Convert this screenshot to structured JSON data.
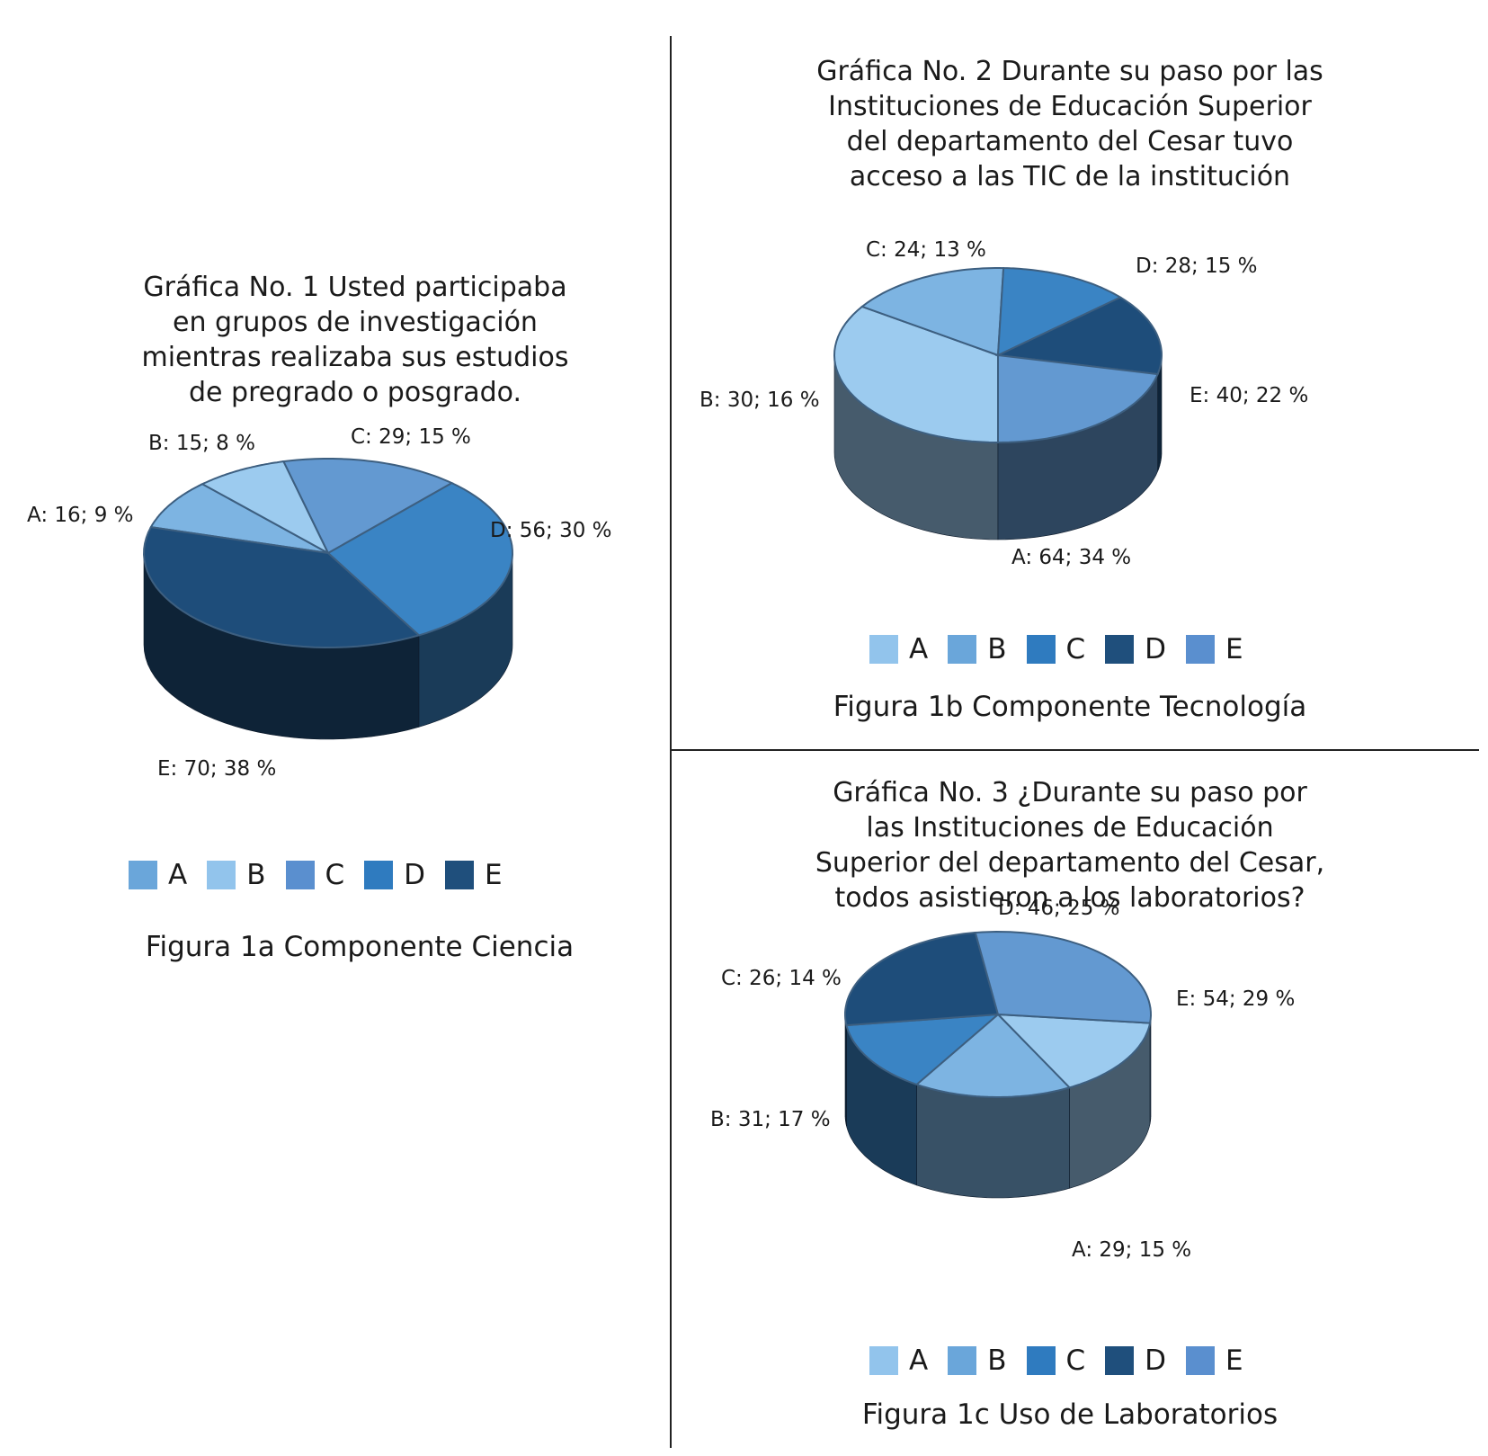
{
  "chart_data": [
    {
      "type": "pie",
      "title": "Gráfica No. 1 Usted participaba\nen grupos de investigación\nmientras realizaba sus estudios\nde pregrado o posgrado.",
      "caption": "Figura 1a Componente Ciencia",
      "categories": [
        "A",
        "B",
        "C",
        "D",
        "E"
      ],
      "values": [
        16,
        15,
        29,
        56,
        70
      ],
      "percents": [
        9,
        8,
        15,
        30,
        38
      ],
      "data_labels": [
        "A: 16; 9 %",
        "B: 15; 8 %",
        "C: 29; 15 %",
        "D: 56; 30 %",
        "E: 70; 38 %"
      ],
      "colors": [
        "#7db4e2",
        "#9ccbef",
        "#6399d1",
        "#3a84c4",
        "#1e4d7a"
      ],
      "legend": [
        {
          "label": "A",
          "color": "#6aa6da"
        },
        {
          "label": "B",
          "color": "#92c4ec"
        },
        {
          "label": "C",
          "color": "#5a8fcf"
        },
        {
          "label": "D",
          "color": "#2f7bbf"
        },
        {
          "label": "E",
          "color": "#1f4f7c"
        }
      ],
      "legend_position": "bottom"
    },
    {
      "type": "pie",
      "title": "Gráfica No. 2 Durante su paso por las\nInstituciones de Educación Superior\ndel departamento del Cesar tuvo\nacceso a las TIC de la institución",
      "caption": "Figura 1b Componente Tecnología",
      "categories": [
        "A",
        "B",
        "C",
        "D",
        "E"
      ],
      "values": [
        64,
        30,
        24,
        28,
        40
      ],
      "percents": [
        34,
        16,
        13,
        15,
        22
      ],
      "data_labels": [
        "A: 64; 34 %",
        "B: 30; 16 %",
        "C: 24; 13 %",
        "D: 28; 15 %",
        "E: 40; 22 %"
      ],
      "colors": [
        "#9ccbef",
        "#7db4e2",
        "#3a84c4",
        "#1e4d7a",
        "#6399d1"
      ],
      "legend": [
        {
          "label": "A",
          "color": "#92c4ec"
        },
        {
          "label": "B",
          "color": "#6aa6da"
        },
        {
          "label": "C",
          "color": "#2f7bbf"
        },
        {
          "label": "D",
          "color": "#1f4f7c"
        },
        {
          "label": "E",
          "color": "#5a8fcf"
        }
      ],
      "legend_position": "bottom"
    },
    {
      "type": "pie",
      "title": "Gráfica No. 3 ¿Durante su paso por\nlas Instituciones de Educación\nSuperior del departamento del Cesar,\ntodos asistieron a los laboratorios?",
      "caption": "Figura 1c Uso de Laboratorios",
      "categories": [
        "A",
        "B",
        "C",
        "D",
        "E"
      ],
      "values": [
        29,
        31,
        26,
        46,
        54
      ],
      "percents": [
        15,
        17,
        14,
        25,
        29
      ],
      "data_labels": [
        "A: 29; 15 %",
        "B: 31; 17 %",
        "C: 26; 14 %",
        "D: 46; 25 %",
        "E: 54; 29 %"
      ],
      "colors": [
        "#9ccbef",
        "#7db4e2",
        "#3a84c4",
        "#1e4d7a",
        "#6399d1"
      ],
      "legend": [
        {
          "label": "A",
          "color": "#92c4ec"
        },
        {
          "label": "B",
          "color": "#6aa6da"
        },
        {
          "label": "C",
          "color": "#2f7bbf"
        },
        {
          "label": "D",
          "color": "#1f4f7c"
        },
        {
          "label": "E",
          "color": "#5a8fcf"
        }
      ],
      "legend_position": "bottom"
    }
  ]
}
